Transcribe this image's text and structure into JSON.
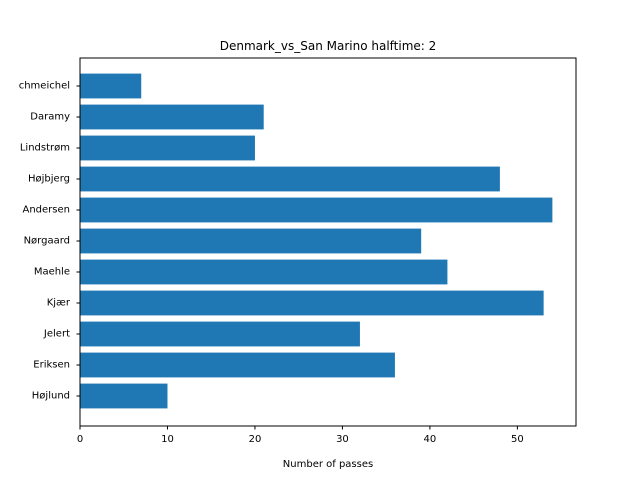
{
  "chart_data": {
    "type": "bar",
    "orientation": "horizontal",
    "title": "Denmark_vs_San Marino halftime: 2",
    "xlabel": "Number of passes",
    "ylabel": "",
    "categories": [
      "Schmeichel",
      "Daramy",
      "Lindstrøm",
      "Højbjerg",
      "Andersen",
      "Nørgaard",
      "Maehle",
      "Kjær",
      "Jelert",
      "Eriksen",
      "Højlund"
    ],
    "category_labels_display": [
      "chmeichel",
      "Daramy",
      "Lindstrøm",
      "Højbjerg",
      "Andersen",
      "Nørgaard",
      "Maehle",
      "Kjær",
      "Jelert",
      "Eriksen",
      "Højlund"
    ],
    "values": [
      7,
      21,
      20,
      48,
      54,
      39,
      42,
      53,
      32,
      36,
      10
    ],
    "xlim": [
      0,
      56.7
    ],
    "xticks": [
      "0",
      "10",
      "20",
      "30",
      "40",
      "50"
    ],
    "grid": false,
    "bar_color": "#1f77b4"
  }
}
